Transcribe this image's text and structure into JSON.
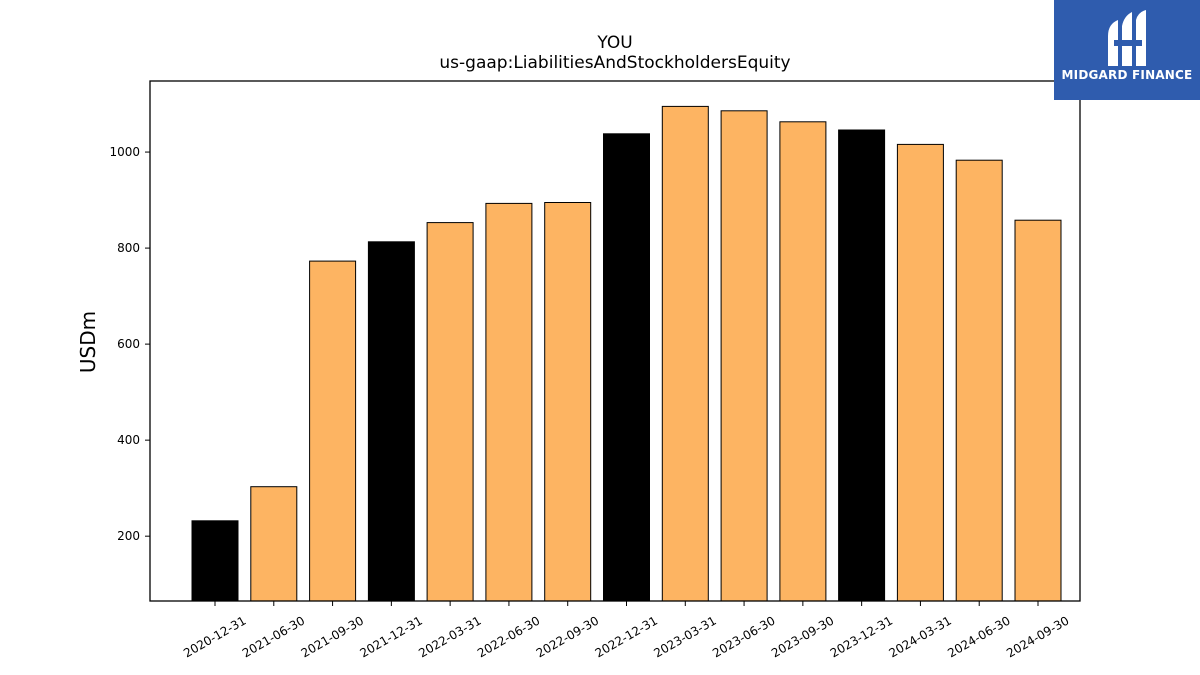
{
  "chart_data": {
    "type": "bar",
    "title": "YOU",
    "subtitle": "us-gaap:LiabilitiesAndStockholdersEquity",
    "xlabel": "",
    "ylabel": "USDm",
    "ylim": [
      65,
      1148
    ],
    "yticks": [
      200,
      400,
      600,
      800,
      1000
    ],
    "grid": false,
    "categories": [
      "2020-12-31",
      "2021-06-30",
      "2021-09-30",
      "2021-12-31",
      "2022-03-31",
      "2022-06-30",
      "2022-09-30",
      "2022-12-31",
      "2023-03-31",
      "2023-06-30",
      "2023-09-30",
      "2023-12-31",
      "2024-03-31",
      "2024-06-30",
      "2024-09-30"
    ],
    "values": [
      232,
      303,
      773,
      813,
      853,
      893,
      895,
      1038,
      1095,
      1086,
      1063,
      1046,
      1016,
      983,
      858
    ],
    "bar_colors": [
      "#000000",
      "#fdb462",
      "#fdb462",
      "#000000",
      "#fdb462",
      "#fdb462",
      "#fdb462",
      "#000000",
      "#fdb462",
      "#fdb462",
      "#fdb462",
      "#000000",
      "#fdb462",
      "#fdb462",
      "#fdb462"
    ]
  },
  "logo": {
    "text": "MIDGARD FINANCE",
    "background": "#2f5cae"
  }
}
